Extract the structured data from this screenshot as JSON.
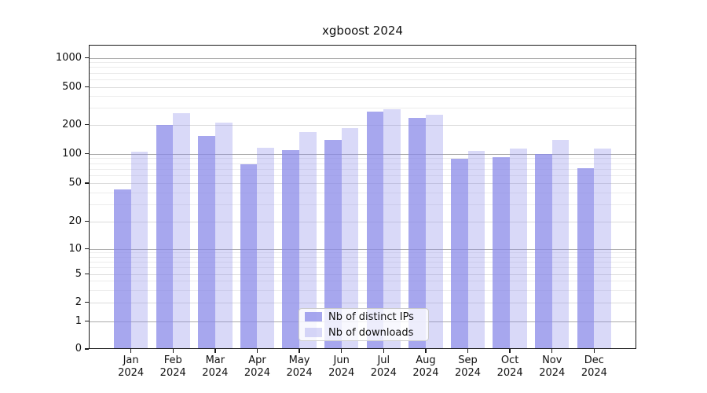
{
  "title": "xgboost 2024",
  "chart_data": {
    "type": "bar",
    "title": "xgboost 2024",
    "year": "2024",
    "categories": [
      "Jan",
      "Feb",
      "Mar",
      "Apr",
      "May",
      "Jun",
      "Jul",
      "Aug",
      "Sep",
      "Oct",
      "Nov",
      "Dec"
    ],
    "series": [
      {
        "name": "Nb of distinct IPs",
        "key": "distinct-ips",
        "color": "#8989e8",
        "alpha": 0.75,
        "values": [
          43,
          197,
          153,
          78,
          108,
          138,
          276,
          233,
          89,
          92,
          100,
          71
        ]
      },
      {
        "name": "Nb of downloads",
        "key": "downloads",
        "color": "#8989e8",
        "alpha": 0.32,
        "values": [
          105,
          262,
          211,
          116,
          168,
          183,
          291,
          255,
          106,
          112,
          140,
          113
        ]
      }
    ],
    "y_axis": {
      "scale": "symlog",
      "ticks": [
        0,
        1,
        2,
        5,
        10,
        20,
        50,
        100,
        200,
        500,
        1000
      ],
      "major_gridlines": [
        1,
        10,
        100,
        1000
      ],
      "ylim": [
        0,
        1370
      ]
    },
    "x_axis": {
      "tick_label_format": "month newline year"
    },
    "legend_position": "lower center",
    "grid": "horizontal only"
  }
}
